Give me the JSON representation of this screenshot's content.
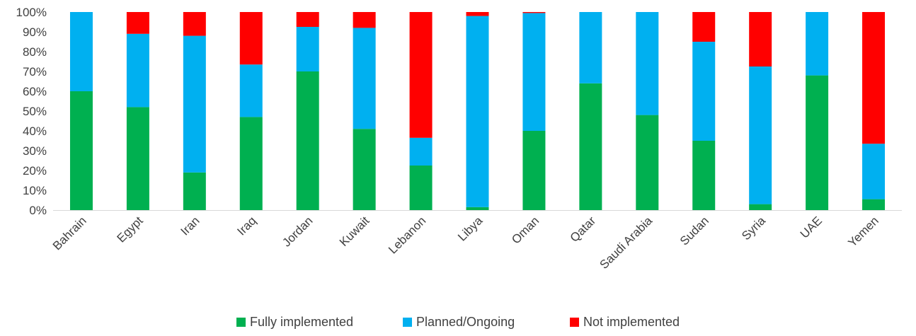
{
  "chart_data": {
    "type": "bar",
    "stacked": true,
    "categories": [
      "Bahrain",
      "Egypt",
      "Iran",
      "Iraq",
      "Jordan",
      "Kuwait",
      "Lebanon",
      "Libya",
      "Oman",
      "Qatar",
      "Saudi Arabia",
      "Sudan",
      "Syria",
      "UAE",
      "Yemen"
    ],
    "series": [
      {
        "name": "Fully implemented",
        "color": "#00b050",
        "values": [
          60,
          52,
          19,
          47,
          70,
          41,
          22.5,
          1.5,
          40,
          64,
          48,
          35,
          3,
          68,
          5.5
        ]
      },
      {
        "name": "Planned/Ongoing",
        "color": "#00b0f0",
        "values": [
          40,
          37,
          69,
          26.5,
          22.5,
          51,
          14,
          96.5,
          59.5,
          36,
          52,
          50,
          69.5,
          32,
          28
        ]
      },
      {
        "name": "Not implemented",
        "color": "#ff0000",
        "values": [
          0,
          11,
          12,
          26.5,
          7.5,
          8,
          63.5,
          2,
          0.5,
          0,
          0,
          15,
          27.5,
          0,
          66.5
        ]
      }
    ],
    "y_tick_labels": [
      "0%",
      "10%",
      "20%",
      "30%",
      "40%",
      "50%",
      "60%",
      "70%",
      "80%",
      "90%",
      "100%"
    ],
    "ylim": [
      0,
      100
    ],
    "grid": false,
    "legend_position": "bottom",
    "title": "",
    "xlabel": "",
    "ylabel": ""
  }
}
